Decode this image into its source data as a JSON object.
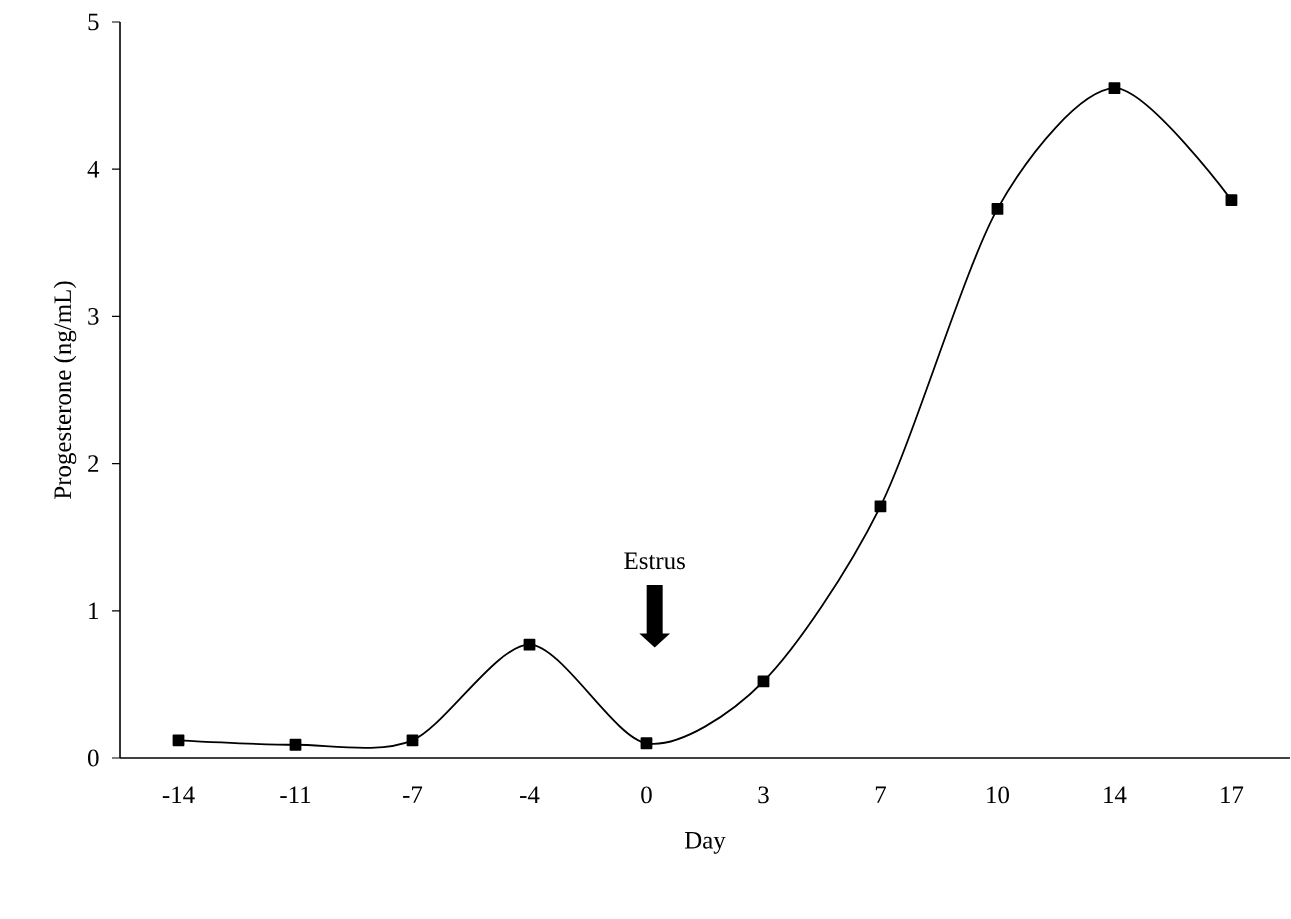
{
  "chart_data": {
    "type": "line",
    "xlabel": "Day",
    "ylabel": "Progesterone (ng/mL)",
    "categories": [
      "-14",
      "-11",
      "-7",
      "-4",
      "0",
      "3",
      "7",
      "10",
      "14",
      "17"
    ],
    "series": [
      {
        "color": "#000000",
        "values": [
          0.12,
          0.09,
          0.12,
          0.77,
          0.1,
          0.52,
          1.71,
          3.73,
          4.55,
          3.79
        ]
      }
    ],
    "ylim": [
      0,
      5
    ],
    "yticks": [
      0,
      1,
      2,
      3,
      4,
      5
    ],
    "marker": "square",
    "line_style": "solid",
    "grid": false,
    "annotations": [
      "Estrus"
    ]
  }
}
